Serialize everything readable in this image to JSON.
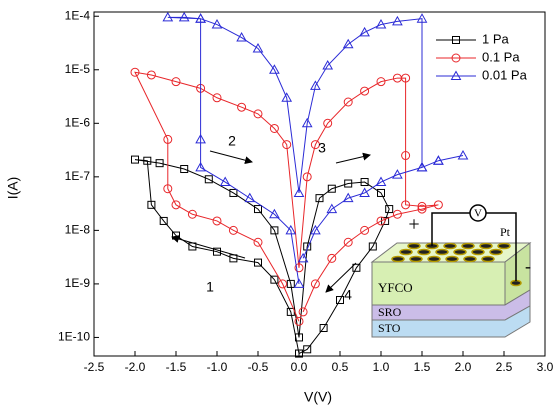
{
  "chart_data": {
    "type": "line",
    "x_label": "V(V)",
    "y_label": "I(A)",
    "log_y": true,
    "xlim": [
      -2.5,
      3.0
    ],
    "xticks": [
      -2.5,
      {
        "value": -2,
        "label": "-2.0"
      },
      -1.5,
      {
        "value": -1,
        "label": "-1.0"
      },
      -0.5,
      {
        "value": 0,
        "label": "0.0"
      },
      0.5,
      {
        "value": 1,
        "label": "1.0"
      },
      1.5,
      {
        "value": 2,
        "label": "2.0"
      },
      2.5,
      {
        "value": 3,
        "label": "3.0"
      }
    ],
    "ylim": [
      4.5e-11,
      0.00012
    ],
    "yticks": [
      {
        "value": 1e-10,
        "label": "1E-10"
      },
      {
        "value": 1e-09,
        "label": "1E-9"
      },
      {
        "value": 1e-08,
        "label": "1E-8"
      },
      {
        "value": 1e-07,
        "label": "1E-7"
      },
      {
        "value": 1e-06,
        "label": "1E-6"
      },
      {
        "value": 1e-05,
        "label": "1E-5"
      },
      {
        "value": 0.0001,
        "label": "1E-4"
      }
    ],
    "legend": "top-right",
    "series": [
      {
        "name": "1 Pa",
        "color": "#000000",
        "marker": "square",
        "x": [
          0,
          -0.1,
          -0.3,
          -0.5,
          -0.8,
          -1.0,
          -1.3,
          -1.5,
          -1.65,
          -1.8,
          -1.85,
          -2.0,
          -1.7,
          -1.4,
          -1.1,
          -0.8,
          -0.5,
          -0.3,
          -0.1,
          0,
          0.1,
          0.25,
          0.4,
          0.6,
          0.8,
          1.0,
          1.1,
          1.05,
          0.9,
          0.7,
          0.5,
          0.3,
          0.1,
          0
        ],
        "values": [
          5e-11,
          3e-10,
          1.2e-09,
          2.5e-09,
          3e-09,
          4e-09,
          5e-09,
          8e-09,
          1.5e-08,
          3e-08,
          2e-07,
          2.1e-07,
          1.8e-07,
          1.4e-07,
          9e-08,
          5e-08,
          2.5e-08,
          1e-08,
          1e-09,
          1e-10,
          5e-09,
          4e-08,
          6e-08,
          7.5e-08,
          8e-08,
          5e-08,
          2.5e-08,
          1.5e-08,
          5e-09,
          2e-09,
          5e-10,
          1.5e-10,
          6e-11,
          5e-11
        ]
      },
      {
        "name": "0.1 Pa",
        "color": "#e8262a",
        "marker": "circle",
        "x": [
          0,
          -0.2,
          -0.5,
          -0.8,
          -1.0,
          -1.3,
          -1.5,
          -1.6,
          -1.6,
          -2.0,
          -1.8,
          -1.5,
          -1.2,
          -1.0,
          -0.7,
          -0.5,
          -0.3,
          -0.15,
          0,
          0.1,
          0.2,
          0.35,
          0.6,
          0.8,
          1.0,
          1.2,
          1.3,
          1.3,
          1.3,
          1.5,
          1.7,
          1.5,
          1.2,
          1.0,
          0.8,
          0.6,
          0.4,
          0.2,
          0.05
        ],
        "values": [
          2e-10,
          1e-09,
          6e-09,
          1e-08,
          1.5e-08,
          2e-08,
          3e-08,
          6e-08,
          5e-07,
          9e-06,
          8e-06,
          6e-06,
          4.5e-06,
          3e-06,
          2e-06,
          1.5e-06,
          8e-07,
          4e-07,
          2e-09,
          1e-07,
          4e-07,
          1e-06,
          2.5e-06,
          4e-06,
          6e-06,
          7e-06,
          7e-06,
          2.5e-07,
          3e-08,
          2.8e-08,
          3e-08,
          2.5e-08,
          2e-08,
          1.5e-08,
          1e-08,
          6e-09,
          3e-09,
          1e-09,
          3e-10
        ]
      },
      {
        "name": "0.01 Pa",
        "color": "#2b2bd6",
        "marker": "triangle",
        "x": [
          0,
          -0.1,
          -0.3,
          -0.6,
          -0.9,
          -1.2,
          -1.2,
          -1.2,
          -1.6,
          -1.4,
          -1.2,
          -1.0,
          -0.7,
          -0.5,
          -0.3,
          -0.15,
          0,
          0.1,
          0.2,
          0.35,
          0.6,
          0.8,
          1.0,
          1.2,
          1.5,
          1.5,
          1.7,
          2.0,
          1.7,
          1.5,
          1.2,
          1.0,
          0.8,
          0.6,
          0.4,
          0.2,
          0.05
        ],
        "values": [
          1e-09,
          1e-08,
          2e-08,
          4e-08,
          8e-08,
          1.5e-07,
          5e-07,
          9e-05,
          9.5e-05,
          9.5e-05,
          9e-05,
          7e-05,
          4e-05,
          2.5e-05,
          1e-05,
          3e-06,
          5e-08,
          1e-06,
          5e-06,
          1.2e-05,
          3e-05,
          5e-05,
          7e-05,
          8e-05,
          9e-05,
          1.5e-07,
          2e-07,
          2.5e-07,
          2e-07,
          1.5e-07,
          1.1e-07,
          8e-08,
          5e-08,
          4e-08,
          2.5e-08,
          1e-08,
          3e-09
        ]
      }
    ],
    "annotations": [
      "1",
      "2",
      "3",
      "4"
    ],
    "inset_labels": [
      "+",
      "Pt",
      "-",
      "YFCO",
      "SRO",
      "STO"
    ]
  }
}
